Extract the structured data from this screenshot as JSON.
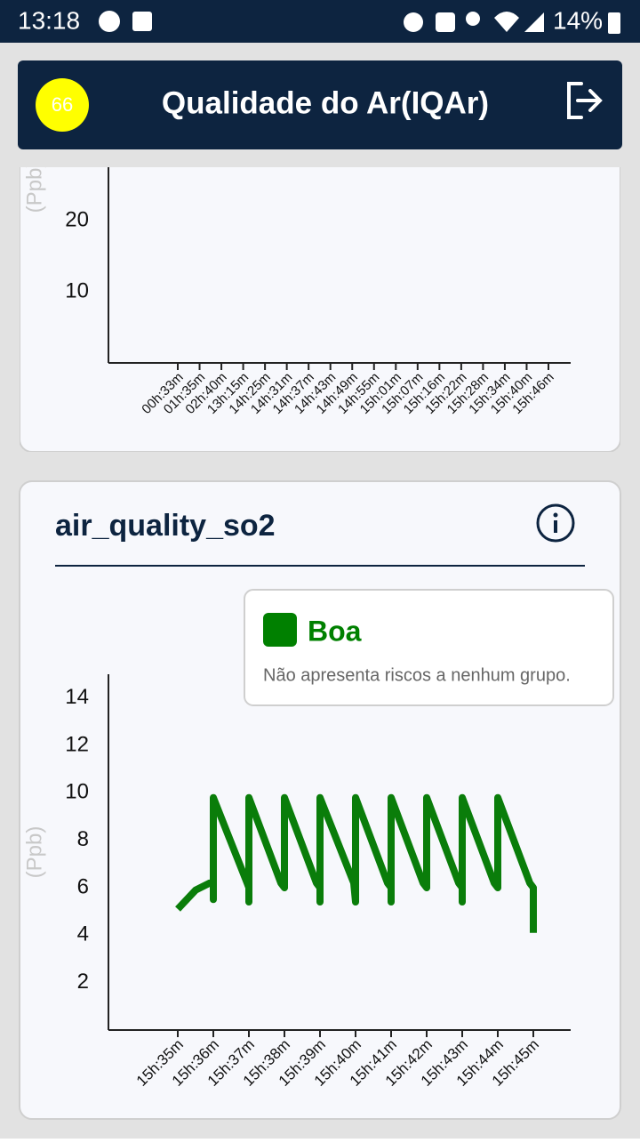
{
  "status_bar": {
    "time": "13:18",
    "battery": "14%"
  },
  "header": {
    "aqi_badge": "66",
    "title": "Qualidade do Ar(IQAr)"
  },
  "tooltip": {
    "level": "Boa",
    "description": "Não apresenta riscos a nenhum grupo.",
    "color": "#008000"
  },
  "chart_data": [
    {
      "type": "line",
      "y_label": "(Ppb)",
      "categories": [
        "00h:33m",
        "01h:35m",
        "02h:40m",
        "13h:15m",
        "14h:25m",
        "14h:31m",
        "14h:37m",
        "14h:43m",
        "14h:49m",
        "14h:55m",
        "15h:01m",
        "15h:07m",
        "15h:16m",
        "15h:22m",
        "15h:28m",
        "15h:34m",
        "15h:40m",
        "15h:46m"
      ],
      "ylim": [
        0,
        27.5
      ],
      "yticks": [
        10,
        20
      ]
    },
    {
      "type": "line",
      "title": "air_quality_so2",
      "y_label": "(Ppb)",
      "color": "#0a7d0a",
      "x": [
        0,
        0.5,
        0.9,
        1.0,
        1.0,
        1.0,
        1.95,
        2.0,
        2.0,
        2.0,
        2.9,
        3.0,
        3.0,
        3.9,
        4.0,
        4.0,
        4.0,
        4.95,
        5.0,
        5.0,
        5.9,
        6.0,
        6.0,
        6.0,
        6.9,
        7.0,
        7.0,
        7.9,
        8.0,
        8.0,
        8.0,
        8.9,
        9.0,
        9.0,
        9.9,
        10.0,
        10.0
      ],
      "values": [
        5.1,
        5.9,
        6.2,
        6.2,
        5.5,
        9.8,
        6.2,
        6.0,
        5.4,
        9.8,
        6.2,
        6.0,
        9.8,
        6.2,
        6.0,
        5.4,
        9.8,
        6.2,
        5.4,
        9.8,
        6.2,
        6.0,
        5.4,
        9.8,
        6.2,
        6.0,
        9.8,
        6.2,
        6.0,
        5.4,
        9.8,
        6.2,
        6.0,
        9.8,
        6.2,
        6.0,
        4.1
      ],
      "xlim": [
        -1.95,
        11.05
      ],
      "xticks": [
        {
          "value": 0,
          "label": "15h:35m"
        },
        {
          "value": 1,
          "label": "15h:36m"
        },
        {
          "value": 2,
          "label": "15h:37m"
        },
        {
          "value": 3,
          "label": "15h:38m"
        },
        {
          "value": 4,
          "label": "15h:39m"
        },
        {
          "value": 5,
          "label": "15h:40m"
        },
        {
          "value": 6,
          "label": "15h:41m"
        },
        {
          "value": 7,
          "label": "15h:42m"
        },
        {
          "value": 8,
          "label": "15h:43m"
        },
        {
          "value": 9,
          "label": "15h:44m"
        },
        {
          "value": 10,
          "label": "15h:45m"
        }
      ],
      "ylim": [
        0,
        15
      ],
      "yticks": [
        2,
        4,
        6,
        8,
        10,
        12,
        14
      ]
    }
  ]
}
